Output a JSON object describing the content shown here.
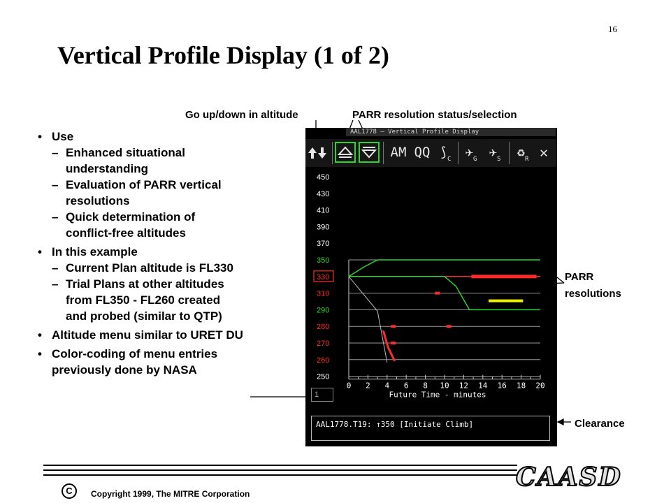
{
  "slide": {
    "number": "16",
    "title": "Vertical Profile Display (1 of 2)"
  },
  "callouts": {
    "altitude_nav": "Go up/down in altitude",
    "parr_status": "PARR resolution status/selection",
    "parr_resolutions_line1": "PARR",
    "parr_resolutions_line2": "resolutions",
    "clearance": "Clearance"
  },
  "bullets": [
    {
      "text": "Use",
      "sub": [
        {
          "l1": "Enhanced situational",
          "l2": "understanding"
        },
        {
          "l1": "Evaluation of PARR vertical",
          "l2": "resolutions"
        },
        {
          "l1": "Quick determination of",
          "l2": "conflict-free altitudes"
        }
      ]
    },
    {
      "text": "In this example",
      "sub": [
        {
          "l1": "Current Plan altitude is FL330",
          "l2": "",
          "l3": ""
        },
        {
          "l1": "Trial Plans at other altitudes",
          "l2": "from FL350 - FL260 created",
          "l3": "and probed (similar to QTP)"
        }
      ]
    },
    {
      "text": "Altitude menu similar to URET DU"
    },
    {
      "text": "Color-coding of menu entries",
      "text2": "previously done by NASA"
    }
  ],
  "display": {
    "window_title": "AAL1778 – Vertical Profile Display",
    "toolbar": {
      "sort_icon": "up-down-arrows-icon",
      "up_icon": "up-triangle-icon",
      "down_icon": "down-triangle-icon",
      "am_label": "AM",
      "qq_label": "QQ",
      "c_label": "C",
      "g_label": "G",
      "s_label": "S",
      "r_label": "R",
      "close_icon": "close-icon"
    },
    "altitude_labels": [
      {
        "label": "450",
        "color": "#ffffff"
      },
      {
        "label": "430",
        "color": "#ffffff"
      },
      {
        "label": "410",
        "color": "#ffffff"
      },
      {
        "label": "390",
        "color": "#ffffff"
      },
      {
        "label": "370",
        "color": "#ffffff"
      },
      {
        "label": "350",
        "color": "#2cd42c"
      },
      {
        "label": "330",
        "color": "#ff2a2a",
        "boxed": true
      },
      {
        "label": "310",
        "color": "#ff2a2a"
      },
      {
        "label": "290",
        "color": "#2cd42c"
      },
      {
        "label": "280",
        "color": "#ff2a2a"
      },
      {
        "label": "270",
        "color": "#ff2a2a"
      },
      {
        "label": "260",
        "color": "#ff2a2a"
      },
      {
        "label": "250",
        "color": "#ffffff"
      }
    ],
    "time_ticks": [
      "0",
      "2",
      "4",
      "6",
      "8",
      "10",
      "12",
      "14",
      "16",
      "18",
      "20"
    ],
    "x_axis_label": "Future Time - minutes",
    "altitude_entry_value": "1",
    "clearance_text": "AAL1778.T19: ↑350 [Initiate Climb]"
  },
  "footer": {
    "copyright_symbol": "C",
    "copyright_text": "Copyright  1999, The MITRE Corporation",
    "logo_text": "CAASD"
  },
  "colors": {
    "green": "#2cd42c",
    "red": "#ff2a2a",
    "yellow": "#f0f000",
    "grid": "#9a9a9a"
  }
}
